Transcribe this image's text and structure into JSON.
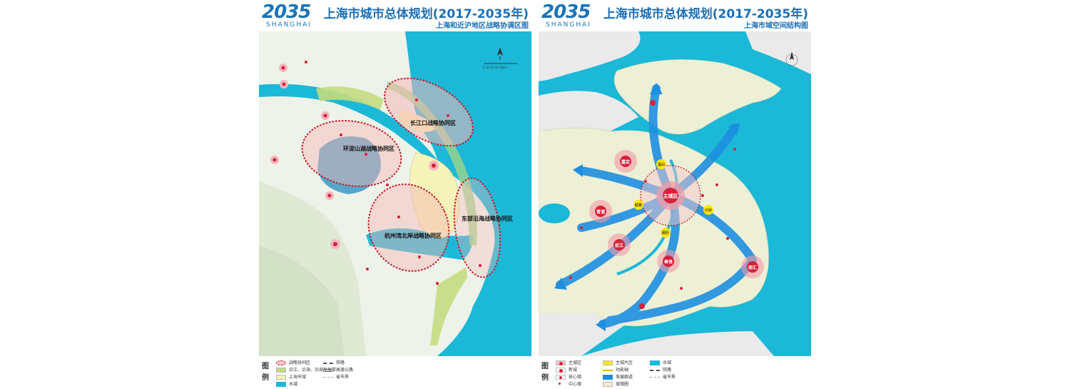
{
  "logo": {
    "year": "2035",
    "city": "SHANGHAI"
  },
  "left": {
    "title": "上海市城市总体规划(2017-2035年)",
    "subtitle": "上海和近沪地区战略协调区图",
    "zones": [
      "长江口战略协同区",
      "环淀山湖战略协同区",
      "杭州湾北岸战略协同区",
      "东部沿海战略协同区"
    ],
    "scale_label": "0  10  20  30  40km",
    "legend": {
      "head1": "图",
      "head2": "例",
      "items": [
        "战略协同区",
        "沿江、沿海、沿湖发展带",
        "上海市域",
        "水域",
        "铁路",
        "高速公路",
        "省市界"
      ]
    }
  },
  "right": {
    "title": "上海市城市总体规划(2017-2035年)",
    "subtitle": "上海市域空间结构图",
    "centers": {
      "main": "主城区",
      "new_towns": [
        "嘉定",
        "青浦",
        "松江",
        "奉贤",
        "南汇"
      ],
      "sub_centers": [
        "宝山",
        "虹桥",
        "川沙",
        "闵行"
      ]
    },
    "legend": {
      "head1": "图",
      "head2": "例",
      "items": [
        "主城区",
        "新城",
        "核心镇",
        "中心镇",
        "主城片区",
        "功能轴",
        "发展廊道",
        "城镇圈",
        "水域",
        "铁路",
        "省市界"
      ]
    }
  }
}
